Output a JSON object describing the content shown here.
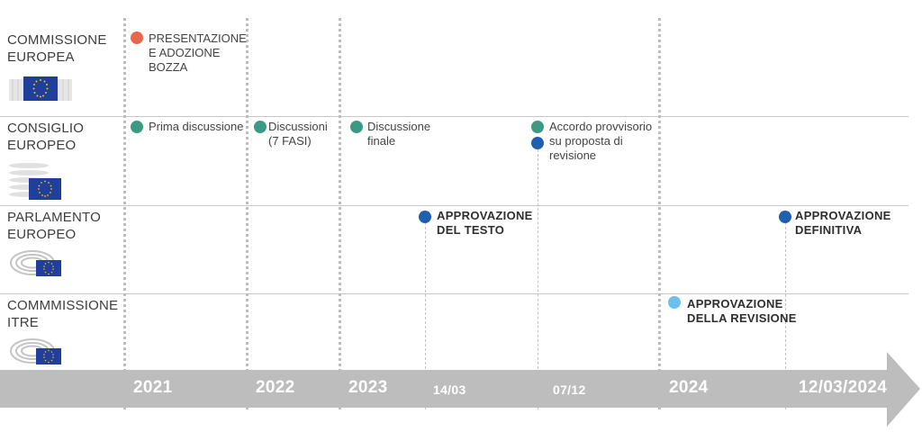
{
  "colors": {
    "orange": "#e8674c",
    "teal": "#3d9a82",
    "dark_blue": "#1f5fb0",
    "light_blue": "#6cc0ec",
    "timeline_bar": "#bdbdbd",
    "grid": "#c8c8c8"
  },
  "rows": [
    {
      "label": "COMMISSIONE\nEUROPEA",
      "icon": "eu-commission-building-icon"
    },
    {
      "label": "CONSIGLIO\nEUROPEO",
      "icon": "eu-council-building-icon"
    },
    {
      "label": "PARLAMENTO\nEUROPEO",
      "icon": "eu-parliament-hemicycle-icon"
    },
    {
      "label": "COMMMISSIONE\nITRE",
      "icon": "eu-parliament-hemicycle-icon"
    }
  ],
  "timeline": {
    "labels": [
      "2021",
      "2022",
      "2023",
      "14/03",
      "07/12",
      "2024",
      "12/03/2024"
    ]
  },
  "events": [
    {
      "text": "PRESENTAZIONE\nE ADOZIONE\nBOZZA",
      "color": "orange"
    },
    {
      "text": "Prima discussione",
      "color": "teal"
    },
    {
      "text": "Discussioni\n(7 FASI)",
      "color": "teal"
    },
    {
      "text": "Discussione\nfinale",
      "color": "teal"
    },
    {
      "text": "Accordo provvisorio\nsu proposta di\nrevisione",
      "color": "teal"
    },
    {
      "text": "APPROVAZIONE\nDEL TESTO",
      "color": "dark_blue"
    },
    {
      "text": "APPROVAZIONE\nDEFINITIVA",
      "color": "dark_blue"
    },
    {
      "text": "APPROVAZIONE\nDELLA REVISIONE",
      "color": "light_blue"
    }
  ]
}
